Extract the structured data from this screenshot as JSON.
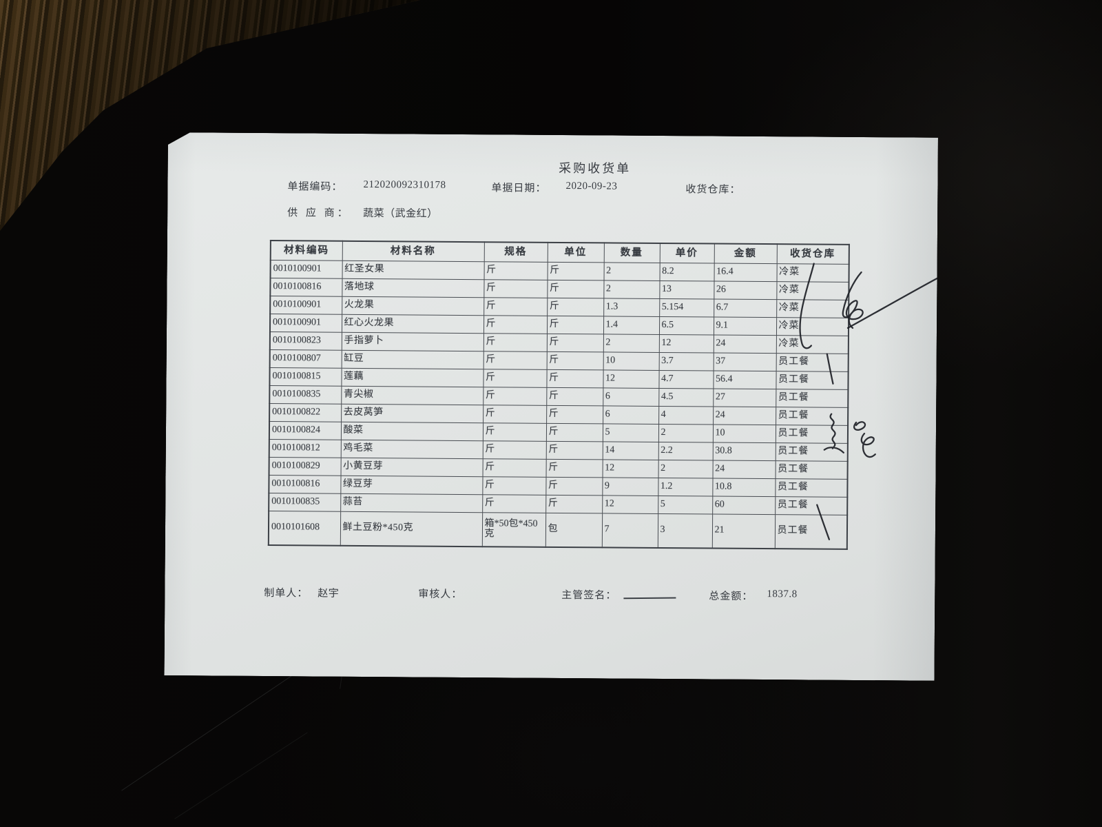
{
  "document": {
    "title": "采购收货单",
    "fields": {
      "doc_no_label": "单据编码：",
      "doc_no": "212020092310178",
      "date_label": "单据日期：",
      "date": "2020-09-23",
      "warehouse_label": "收货仓库：",
      "supplier_label": "供 应 商：",
      "supplier": "蔬菜（武金红）"
    },
    "table": {
      "headers": [
        "材料编码",
        "材料名称",
        "规格",
        "单位",
        "数量",
        "单价",
        "金额",
        "收货仓库"
      ],
      "rows": [
        [
          "0010100901",
          "红圣女果",
          "斤",
          "斤",
          "2",
          "8.2",
          "16.4",
          "冷菜"
        ],
        [
          "0010100816",
          "落地球",
          "斤",
          "斤",
          "2",
          "13",
          "26",
          "冷菜"
        ],
        [
          "0010100901",
          "火龙果",
          "斤",
          "斤",
          "1.3",
          "5.154",
          "6.7",
          "冷菜"
        ],
        [
          "0010100901",
          "红心火龙果",
          "斤",
          "斤",
          "1.4",
          "6.5",
          "9.1",
          "冷菜"
        ],
        [
          "0010100823",
          "手指萝卜",
          "斤",
          "斤",
          "2",
          "12",
          "24",
          "冷菜"
        ],
        [
          "0010100807",
          "缸豆",
          "斤",
          "斤",
          "10",
          "3.7",
          "37",
          "员工餐"
        ],
        [
          "0010100815",
          "莲藕",
          "斤",
          "斤",
          "12",
          "4.7",
          "56.4",
          "员工餐"
        ],
        [
          "0010100835",
          "青尖椒",
          "斤",
          "斤",
          "6",
          "4.5",
          "27",
          "员工餐"
        ],
        [
          "0010100822",
          "去皮莴笋",
          "斤",
          "斤",
          "6",
          "4",
          "24",
          "员工餐"
        ],
        [
          "0010100824",
          "酸菜",
          "斤",
          "斤",
          "5",
          "2",
          "10",
          "员工餐"
        ],
        [
          "0010100812",
          "鸡毛菜",
          "斤",
          "斤",
          "14",
          "2.2",
          "30.8",
          "员工餐"
        ],
        [
          "0010100829",
          "小黄豆芽",
          "斤",
          "斤",
          "12",
          "2",
          "24",
          "员工餐"
        ],
        [
          "0010100816",
          "绿豆芽",
          "斤",
          "斤",
          "9",
          "1.2",
          "10.8",
          "员工餐"
        ],
        [
          "0010100835",
          "蒜苔",
          "斤",
          "斤",
          "12",
          "5",
          "60",
          "员工餐"
        ],
        [
          "0010101608",
          "鲜土豆粉*450克",
          "箱*50包*450克",
          "包",
          "7",
          "3",
          "21",
          "员工餐"
        ]
      ]
    },
    "footer": {
      "maker_label": "制单人：",
      "maker": "赵宇",
      "auditor_label": "审核人：",
      "signature_label": "主管签名：",
      "total_label": "总金额：",
      "total": "1837.8"
    }
  },
  "colors": {
    "paper": "#e2e5e4",
    "print_ink": "#373b41",
    "pen_ink": "#1d2026",
    "background": "#070606",
    "wood": "#5c4424"
  }
}
